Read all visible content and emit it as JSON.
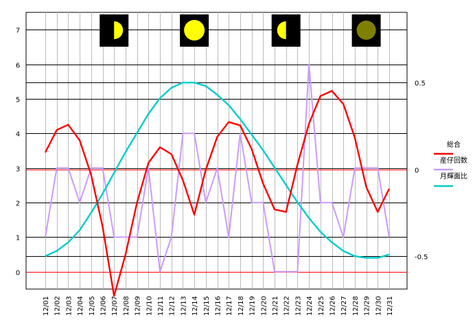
{
  "chart_data": {
    "type": "line",
    "x": [
      "12/01",
      "12/02",
      "12/03",
      "12/04",
      "12/05",
      "12/06",
      "12/07",
      "12/08",
      "12/09",
      "12/10",
      "12/11",
      "12/12",
      "12/13",
      "12/14",
      "12/15",
      "12/16",
      "12/17",
      "12/18",
      "12/19",
      "12/20",
      "12/21",
      "12/22",
      "12/23",
      "12/24",
      "12/25",
      "12/26",
      "12/27",
      "12/28",
      "12/29",
      "12/30",
      "12/31"
    ],
    "ylim": [
      -0.5,
      7.5
    ],
    "yticks": [
      "0",
      "1",
      "2",
      "3",
      "4",
      "5",
      "6",
      "7"
    ],
    "y2lim": [
      -0.6895,
      0.9046
    ],
    "y2ticks": [
      {
        "value": 0.5,
        "label": "0.5"
      },
      {
        "value": 0,
        "label": "0"
      },
      {
        "value": -0.5,
        "label": "-0.5"
      }
    ],
    "legend_position": "right",
    "grid": true,
    "series": [
      {
        "name": "総合",
        "axis": "left",
        "color": "#ff0000",
        "values": [
          3.45,
          4.1,
          4.25,
          3.8,
          2.8,
          1.3,
          -0.7,
          0.5,
          2.0,
          3.15,
          3.6,
          3.4,
          2.65,
          1.65,
          2.95,
          3.9,
          4.33,
          4.23,
          3.55,
          2.55,
          1.8,
          1.73,
          3.1,
          4.28,
          5.08,
          5.23,
          4.85,
          3.88,
          2.45,
          1.73,
          2.4
        ]
      },
      {
        "name": "産仔回数",
        "axis": "left",
        "color": "#cc99ff",
        "values": [
          1,
          3,
          3,
          2,
          3,
          3,
          1,
          1,
          1,
          3,
          0,
          1,
          4,
          4,
          2,
          3,
          1,
          4,
          2,
          2,
          0,
          0,
          0,
          6,
          2,
          2,
          1,
          3,
          3,
          3,
          1
        ]
      },
      {
        "name": "月輝面比",
        "axis": "right",
        "color": "#00cccc",
        "values": [
          -0.5,
          -0.47,
          -0.42,
          -0.35,
          -0.25,
          -0.14,
          -0.02,
          0.1,
          0.21,
          0.32,
          0.41,
          0.47,
          0.5,
          0.5,
          0.48,
          0.43,
          0.37,
          0.29,
          0.2,
          0.11,
          0.01,
          -0.09,
          -0.19,
          -0.28,
          -0.36,
          -0.42,
          -0.47,
          -0.5,
          -0.51,
          -0.51,
          -0.49
        ]
      }
    ],
    "moon_phases": [
      {
        "date": "12/07",
        "phase": "first-quarter"
      },
      {
        "date": "12/14",
        "phase": "full-moon"
      },
      {
        "date": "12/22",
        "phase": "last-quarter"
      },
      {
        "date": "12/29",
        "phase": "new-moon"
      }
    ],
    "colors": {
      "zero_line": "#ff0000",
      "grid_major": "#000000",
      "grid_minor": "#bbbbbb",
      "moon_bg": "#000000",
      "moon_lit": "#ffff00",
      "moon_new": "#808000"
    }
  }
}
